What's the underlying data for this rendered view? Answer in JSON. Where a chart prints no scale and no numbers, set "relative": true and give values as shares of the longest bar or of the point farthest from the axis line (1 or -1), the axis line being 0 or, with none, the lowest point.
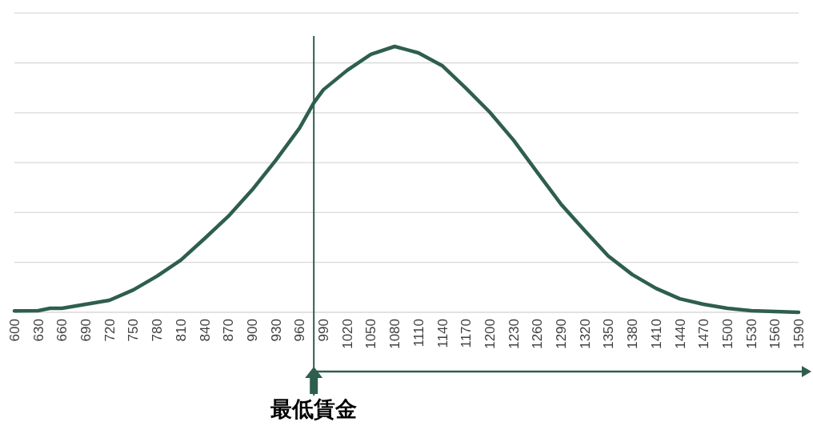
{
  "chart_data": {
    "type": "line",
    "relative": true,
    "grid": "y",
    "marker": "none",
    "line_style": "solid",
    "xlim": [
      600,
      1590
    ],
    "xticks": [
      600,
      630,
      660,
      690,
      720,
      750,
      780,
      810,
      840,
      870,
      900,
      930,
      960,
      990,
      1020,
      1050,
      1080,
      1110,
      1140,
      1170,
      1200,
      1230,
      1260,
      1290,
      1320,
      1350,
      1380,
      1410,
      1440,
      1470,
      1500,
      1530,
      1560,
      1590
    ],
    "series": [
      {
        "color": "#2e5e4e",
        "x": [
          600,
          630,
          645,
          660,
          690,
          720,
          750,
          780,
          810,
          840,
          870,
          900,
          930,
          960,
          978,
          990,
          1020,
          1050,
          1080,
          1110,
          1140,
          1170,
          1200,
          1230,
          1260,
          1290,
          1320,
          1350,
          1380,
          1410,
          1440,
          1470,
          1500,
          1530,
          1560,
          1590
        ],
        "values": [
          0.005,
          0.006,
          0.015,
          0.015,
          0.03,
          0.045,
          0.084,
          0.136,
          0.196,
          0.277,
          0.361,
          0.46,
          0.572,
          0.693,
          0.788,
          0.837,
          0.91,
          0.97,
          1,
          0.976,
          0.928,
          0.843,
          0.753,
          0.648,
          0.527,
          0.407,
          0.307,
          0.211,
          0.142,
          0.09,
          0.051,
          0.03,
          0.015,
          0.006,
          0.003,
          0
        ]
      }
    ],
    "ref_lines": [
      {
        "axis": "x",
        "value": 978,
        "label": "最低賃金",
        "color": "#2e5e4e"
      }
    ]
  }
}
